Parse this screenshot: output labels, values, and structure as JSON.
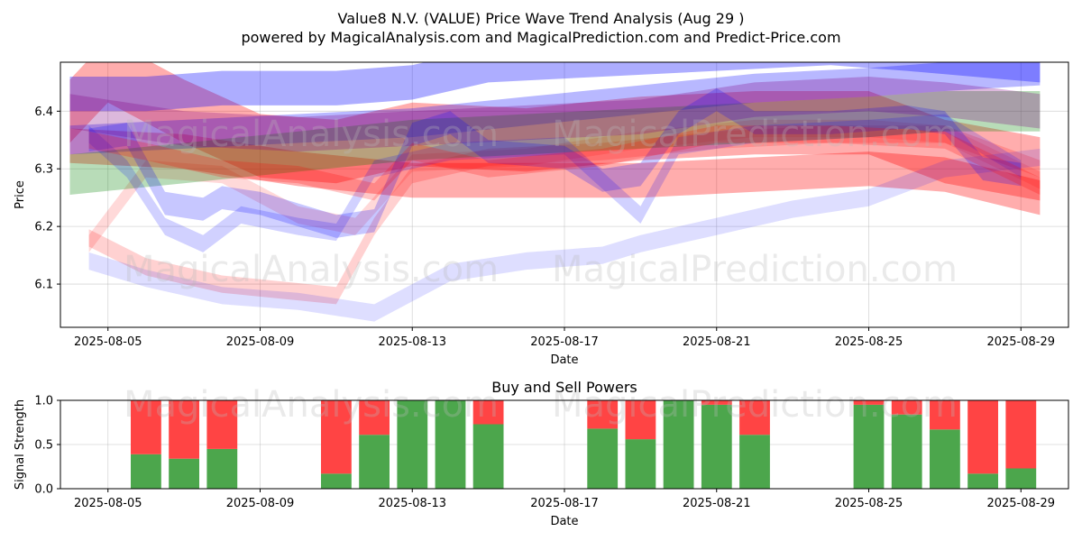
{
  "title_line1": "Value8 N.V. (VALUE) Price Wave Trend Analysis (Aug 29 )",
  "title_line2": "powered by MagicalAnalysis.com and MagicalPrediction.com and Predict-Price.com",
  "watermarks": [
    "MagicalAnalysis.com",
    "MagicalPrediction.com"
  ],
  "chart_data": [
    {
      "type": "area",
      "ylabel": "Price",
      "xlabel": "Date",
      "xlim": [
        "2025-08-03 18:00",
        "2025-08-30 06:00"
      ],
      "ylim": [
        6.025,
        6.485
      ],
      "grid": true,
      "xticks": [
        "2025-08-05",
        "2025-08-09",
        "2025-08-13",
        "2025-08-17",
        "2025-08-21",
        "2025-08-25",
        "2025-08-29"
      ],
      "yticks": [
        6.1,
        6.2,
        6.3,
        6.4
      ],
      "bands": [
        {
          "color": "#ff0000",
          "opacity": 0.32,
          "halfwidth": 0.055,
          "points": [
            [
              "2025-08-04 00:00",
              6.4
            ],
            [
              "2025-08-05 00:00",
              6.47
            ],
            [
              "2025-08-07 00:00",
              6.4
            ],
            [
              "2025-08-09 00:00",
              6.34
            ],
            [
              "2025-08-11 00:00",
              6.33
            ],
            [
              "2025-08-13 00:00",
              6.36
            ],
            [
              "2025-08-16 00:00",
              6.35
            ],
            [
              "2025-08-19 00:00",
              6.37
            ],
            [
              "2025-08-22 00:00",
              6.38
            ],
            [
              "2025-08-25 00:00",
              6.38
            ],
            [
              "2025-08-27 00:00",
              6.33
            ],
            [
              "2025-08-29 12:00",
              6.3
            ]
          ]
        },
        {
          "color": "#ff0000",
          "opacity": 0.32,
          "halfwidth": 0.03,
          "points": [
            [
              "2025-08-04 00:00",
              6.34
            ],
            [
              "2025-08-07 00:00",
              6.33
            ],
            [
              "2025-08-10 00:00",
              6.3
            ],
            [
              "2025-08-13 00:00",
              6.28
            ],
            [
              "2025-08-16 00:00",
              6.28
            ],
            [
              "2025-08-19 00:00",
              6.28
            ],
            [
              "2025-08-22 00:00",
              6.29
            ],
            [
              "2025-08-25 00:00",
              6.3
            ],
            [
              "2025-08-27 00:00",
              6.29
            ],
            [
              "2025-08-29 12:00",
              6.25
            ]
          ]
        },
        {
          "color": "#ff0000",
          "opacity": 0.15,
          "halfwidth": 0.015,
          "points": [
            [
              "2025-08-04 12:00",
              6.17
            ],
            [
              "2025-08-06 00:00",
              6.3
            ],
            [
              "2025-08-08 00:00",
              6.29
            ],
            [
              "2025-08-10 00:00",
              6.22
            ],
            [
              "2025-08-11 12:00",
              6.2
            ],
            [
              "2025-08-13 00:00",
              6.31
            ],
            [
              "2025-08-16 00:00",
              6.32
            ],
            [
              "2025-08-19 00:00",
              6.35
            ],
            [
              "2025-08-22 00:00",
              6.37
            ],
            [
              "2025-08-25 00:00",
              6.37
            ],
            [
              "2025-08-27 00:00",
              6.36
            ],
            [
              "2025-08-29 12:00",
              6.28
            ]
          ]
        },
        {
          "color": "#ff0000",
          "opacity": 0.18,
          "halfwidth": 0.015,
          "points": [
            [
              "2025-08-04 12:00",
              6.18
            ],
            [
              "2025-08-06 00:00",
              6.13
            ],
            [
              "2025-08-08 00:00",
              6.1
            ],
            [
              "2025-08-11 00:00",
              6.08
            ],
            [
              "2025-08-12 00:00",
              6.2
            ],
            [
              "2025-08-13 00:00",
              6.29
            ],
            [
              "2025-08-15 00:00",
              6.32
            ],
            [
              "2025-08-18 00:00",
              6.33
            ],
            [
              "2025-08-21 00:00",
              6.35
            ],
            [
              "2025-08-24 00:00",
              6.36
            ],
            [
              "2025-08-27 00:00",
              6.36
            ],
            [
              "2025-08-29 12:00",
              6.3
            ]
          ]
        },
        {
          "color": "#0000ff",
          "opacity": 0.32,
          "halfwidth": 0.03,
          "points": [
            [
              "2025-08-04 00:00",
              6.43
            ],
            [
              "2025-08-06 00:00",
              6.43
            ],
            [
              "2025-08-08 00:00",
              6.44
            ],
            [
              "2025-08-11 00:00",
              6.44
            ],
            [
              "2025-08-13 00:00",
              6.45
            ],
            [
              "2025-08-15 00:00",
              6.48
            ],
            [
              "2025-08-18 00:00",
              6.49
            ],
            [
              "2025-08-21 00:00",
              6.5
            ],
            [
              "2025-08-24 00:00",
              6.51
            ],
            [
              "2025-08-26 00:00",
              6.5
            ],
            [
              "2025-08-29 12:00",
              6.48
            ]
          ]
        },
        {
          "color": "#0000ff",
          "opacity": 0.28,
          "halfwidth": 0.025,
          "points": [
            [
              "2025-08-04 00:00",
              6.35
            ],
            [
              "2025-08-07 00:00",
              6.36
            ],
            [
              "2025-08-10 00:00",
              6.37
            ],
            [
              "2025-08-13 00:00",
              6.38
            ],
            [
              "2025-08-16 00:00",
              6.4
            ],
            [
              "2025-08-19 00:00",
              6.42
            ],
            [
              "2025-08-22 00:00",
              6.44
            ],
            [
              "2025-08-25 00:00",
              6.45
            ],
            [
              "2025-08-27 00:00",
              6.46
            ],
            [
              "2025-08-29 12:00",
              6.47
            ]
          ]
        },
        {
          "color": "#008000",
          "opacity": 0.28,
          "halfwidth": 0.035,
          "points": [
            [
              "2025-08-04 00:00",
              6.29
            ],
            [
              "2025-08-07 00:00",
              6.31
            ],
            [
              "2025-08-10 00:00",
              6.33
            ],
            [
              "2025-08-13 00:00",
              6.35
            ],
            [
              "2025-08-16 00:00",
              6.36
            ],
            [
              "2025-08-19 00:00",
              6.37
            ],
            [
              "2025-08-22 00:00",
              6.38
            ],
            [
              "2025-08-25 00:00",
              6.39
            ],
            [
              "2025-08-27 00:00",
              6.4
            ],
            [
              "2025-08-29 12:00",
              6.4
            ]
          ]
        },
        {
          "color": "#800080",
          "opacity": 0.28,
          "halfwidth": 0.03,
          "points": [
            [
              "2025-08-04 00:00",
              6.4
            ],
            [
              "2025-08-07 00:00",
              6.37
            ],
            [
              "2025-08-10 00:00",
              6.36
            ],
            [
              "2025-08-13 00:00",
              6.37
            ],
            [
              "2025-08-16 00:00",
              6.38
            ],
            [
              "2025-08-19 00:00",
              6.39
            ],
            [
              "2025-08-22 00:00",
              6.42
            ],
            [
              "2025-08-25 00:00",
              6.43
            ],
            [
              "2025-08-27 00:00",
              6.42
            ],
            [
              "2025-08-29 12:00",
              6.4
            ]
          ]
        },
        {
          "color": "#0000ff",
          "opacity": 0.22,
          "halfwidth": 0.02,
          "points": [
            [
              "2025-08-04 12:00",
              6.35
            ],
            [
              "2025-08-05 12:00",
              6.36
            ],
            [
              "2025-08-06 12:00",
              6.24
            ],
            [
              "2025-08-07 12:00",
              6.23
            ],
            [
              "2025-08-08 00:00",
              6.25
            ],
            [
              "2025-08-09 00:00",
              6.24
            ],
            [
              "2025-08-11 00:00",
              6.2
            ],
            [
              "2025-08-12 00:00",
              6.21
            ],
            [
              "2025-08-13 00:00",
              6.36
            ],
            [
              "2025-08-14 00:00",
              6.38
            ],
            [
              "2025-08-15 00:00",
              6.33
            ],
            [
              "2025-08-17 00:00",
              6.32
            ],
            [
              "2025-08-18 00:00",
              6.28
            ],
            [
              "2025-08-19 00:00",
              6.29
            ],
            [
              "2025-08-20 00:00",
              6.38
            ],
            [
              "2025-08-21 00:00",
              6.42
            ],
            [
              "2025-08-22 00:00",
              6.38
            ],
            [
              "2025-08-24 00:00",
              6.38
            ],
            [
              "2025-08-26 00:00",
              6.39
            ],
            [
              "2025-08-27 00:00",
              6.38
            ],
            [
              "2025-08-28 00:00",
              6.3
            ],
            [
              "2025-08-29 00:00",
              6.29
            ]
          ]
        },
        {
          "color": "#0000ff",
          "opacity": 0.13,
          "halfwidth": 0.015,
          "points": [
            [
              "2025-08-04 12:00",
              6.14
            ],
            [
              "2025-08-06 00:00",
              6.11
            ],
            [
              "2025-08-08 00:00",
              6.08
            ],
            [
              "2025-08-10 00:00",
              6.07
            ],
            [
              "2025-08-12 00:00",
              6.05
            ],
            [
              "2025-08-14 00:00",
              6.12
            ],
            [
              "2025-08-16 00:00",
              6.14
            ],
            [
              "2025-08-18 00:00",
              6.15
            ],
            [
              "2025-08-19 00:00",
              6.17
            ],
            [
              "2025-08-21 00:00",
              6.2
            ],
            [
              "2025-08-23 00:00",
              6.23
            ],
            [
              "2025-08-25 00:00",
              6.25
            ],
            [
              "2025-08-27 00:00",
              6.3
            ],
            [
              "2025-08-29 12:00",
              6.32
            ]
          ]
        },
        {
          "color": "#0000ff",
          "opacity": 0.18,
          "halfwidth": 0.015,
          "points": [
            [
              "2025-08-04 12:00",
              6.36
            ],
            [
              "2025-08-05 12:00",
              6.3
            ],
            [
              "2025-08-06 12:00",
              6.2
            ],
            [
              "2025-08-07 12:00",
              6.17
            ],
            [
              "2025-08-08 12:00",
              6.22
            ],
            [
              "2025-08-10 00:00",
              6.2
            ],
            [
              "2025-08-11 00:00",
              6.19
            ],
            [
              "2025-08-12 00:00",
              6.3
            ],
            [
              "2025-08-14 00:00",
              6.33
            ],
            [
              "2025-08-17 00:00",
              6.34
            ],
            [
              "2025-08-19 00:00",
              6.22
            ],
            [
              "2025-08-20 00:00",
              6.34
            ],
            [
              "2025-08-22 00:00",
              6.36
            ],
            [
              "2025-08-25 00:00",
              6.37
            ],
            [
              "2025-08-27 00:00",
              6.38
            ],
            [
              "2025-08-28 12:00",
              6.32
            ],
            [
              "2025-08-29 00:00",
              6.3
            ]
          ]
        },
        {
          "color": "#ff0000",
          "opacity": 0.22,
          "halfwidth": 0.015,
          "points": [
            [
              "2025-08-04 12:00",
              6.35
            ],
            [
              "2025-08-06 00:00",
              6.33
            ],
            [
              "2025-08-08 00:00",
              6.3
            ],
            [
              "2025-08-10 00:00",
              6.29
            ],
            [
              "2025-08-12 00:00",
              6.26
            ],
            [
              "2025-08-13 00:00",
              6.33
            ],
            [
              "2025-08-15 00:00",
              6.3
            ],
            [
              "2025-08-18 00:00",
              6.32
            ],
            [
              "2025-08-21 00:00",
              6.36
            ],
            [
              "2025-08-24 00:00",
              6.36
            ],
            [
              "2025-08-27 00:00",
              6.35
            ],
            [
              "2025-08-29 12:00",
              6.27
            ]
          ]
        }
      ]
    },
    {
      "type": "bar",
      "stacked": true,
      "title": "Buy and Sell Powers",
      "ylabel": "Signal Strength",
      "xlabel": "Date",
      "xlim": [
        "2025-08-03 18:00",
        "2025-08-30 06:00"
      ],
      "ylim": [
        0,
        1
      ],
      "yticks": [
        0.0,
        0.5,
        1.0
      ],
      "xticks": [
        "2025-08-05",
        "2025-08-09",
        "2025-08-13",
        "2025-08-17",
        "2025-08-21",
        "2025-08-25",
        "2025-08-29"
      ],
      "grid": true,
      "categories": [
        "2025-08-06",
        "2025-08-07",
        "2025-08-08",
        "2025-08-11",
        "2025-08-12",
        "2025-08-13",
        "2025-08-14",
        "2025-08-15",
        "2025-08-18",
        "2025-08-19",
        "2025-08-20",
        "2025-08-21",
        "2025-08-22",
        "2025-08-25",
        "2025-08-26",
        "2025-08-27",
        "2025-08-28",
        "2025-08-29"
      ],
      "series": [
        {
          "name": "Buy",
          "color": "#4ca64c",
          "values": [
            0.39,
            0.34,
            0.45,
            0.17,
            0.61,
            1.0,
            1.0,
            0.73,
            0.68,
            0.56,
            1.0,
            0.95,
            0.61,
            0.95,
            0.84,
            0.67,
            0.17,
            0.23
          ]
        },
        {
          "name": "Sell",
          "color": "#ff4444",
          "values": [
            0.61,
            0.66,
            0.55,
            0.83,
            0.39,
            0.0,
            0.0,
            0.27,
            0.32,
            0.44,
            0.0,
            0.05,
            0.39,
            0.05,
            0.16,
            0.33,
            0.83,
            0.77
          ]
        }
      ]
    }
  ]
}
